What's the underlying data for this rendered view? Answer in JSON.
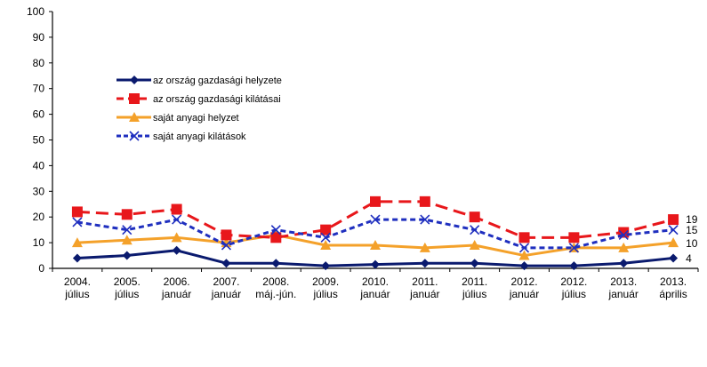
{
  "chart_data": {
    "type": "line",
    "title": "",
    "xlabel": "",
    "ylabel": "",
    "ylim": [
      0,
      100
    ],
    "yticks": [
      0,
      10,
      20,
      30,
      40,
      50,
      60,
      70,
      80,
      90,
      100
    ],
    "grid": false,
    "legend_position": "upper-left",
    "categories": [
      [
        "2004.",
        "július"
      ],
      [
        "2005.",
        "július"
      ],
      [
        "2006.",
        "január"
      ],
      [
        "2007.",
        "január"
      ],
      [
        "2008.",
        "máj.-jún."
      ],
      [
        "2009.",
        "július"
      ],
      [
        "2010.",
        "január"
      ],
      [
        "2011.",
        "január"
      ],
      [
        "2011.",
        "július"
      ],
      [
        "2012.",
        "január"
      ],
      [
        "2012.",
        "július"
      ],
      [
        "2013.",
        "január"
      ],
      [
        "2013.",
        "április"
      ]
    ],
    "series": [
      {
        "name": "az ország gazdasági helyzete",
        "color": "#0a1a6e",
        "marker": "diamond",
        "dash": "solid",
        "values": [
          4,
          5,
          7,
          2,
          2,
          1,
          1.5,
          2,
          2,
          1,
          1,
          2,
          4
        ],
        "end_label": "4"
      },
      {
        "name": "az ország gazdasági kilátásai",
        "color": "#e8171b",
        "marker": "square",
        "dash": "long-dash",
        "values": [
          22,
          21,
          23,
          13,
          12,
          15,
          26,
          26,
          20,
          12,
          12,
          14,
          19
        ],
        "end_label": "19"
      },
      {
        "name": "saját anyagi helyzet",
        "color": "#f4a12a",
        "marker": "triangle",
        "dash": "solid",
        "values": [
          10,
          11,
          12,
          10,
          13,
          9,
          9,
          8,
          9,
          5,
          8,
          8,
          10
        ],
        "end_label": "10"
      },
      {
        "name": "saját anyagi kilátások",
        "color": "#1f2fbf",
        "marker": "x",
        "dash": "short-dash",
        "values": [
          18,
          15,
          19,
          9,
          15,
          12,
          19,
          19,
          15,
          8,
          8,
          13,
          15
        ],
        "end_label": "15"
      }
    ]
  }
}
